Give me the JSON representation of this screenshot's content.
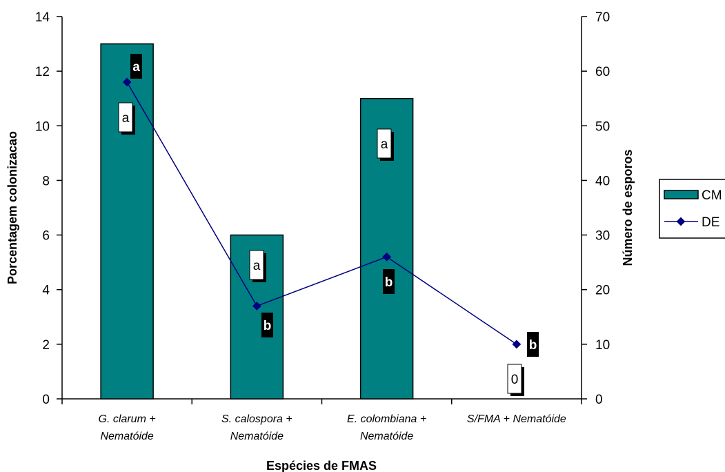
{
  "chart_data": {
    "type": "bar+line",
    "xlabel": "Espécies de FMAS",
    "ylabel_left": "Porcentagem colonizacao",
    "ylabel_right": "Número de esporos",
    "ylim_left": [
      0,
      14
    ],
    "ylim_right": [
      0,
      70
    ],
    "yticks_left": [
      0,
      2,
      4,
      6,
      8,
      10,
      12,
      14
    ],
    "yticks_right": [
      0,
      10,
      20,
      30,
      40,
      50,
      60,
      70
    ],
    "grid": false,
    "legend_position": "right",
    "categories": [
      [
        "G. clarum +",
        "Nematóide"
      ],
      [
        "S. calospora +",
        "Nematóide"
      ],
      [
        "E. colombiana +",
        "Nematóide"
      ],
      [
        "S/FMA + Nematóide"
      ]
    ],
    "series": [
      {
        "name": "CM",
        "type": "bar",
        "axis": "left",
        "values": [
          13,
          6,
          11,
          0
        ],
        "color": "#008080",
        "letters": [
          "a",
          "a",
          "a",
          "0"
        ]
      },
      {
        "name": "DE",
        "type": "line",
        "axis": "right",
        "values": [
          58,
          17,
          26,
          10
        ],
        "color": "#000080",
        "letters": [
          "a",
          "b",
          "b",
          "b"
        ]
      }
    ]
  }
}
